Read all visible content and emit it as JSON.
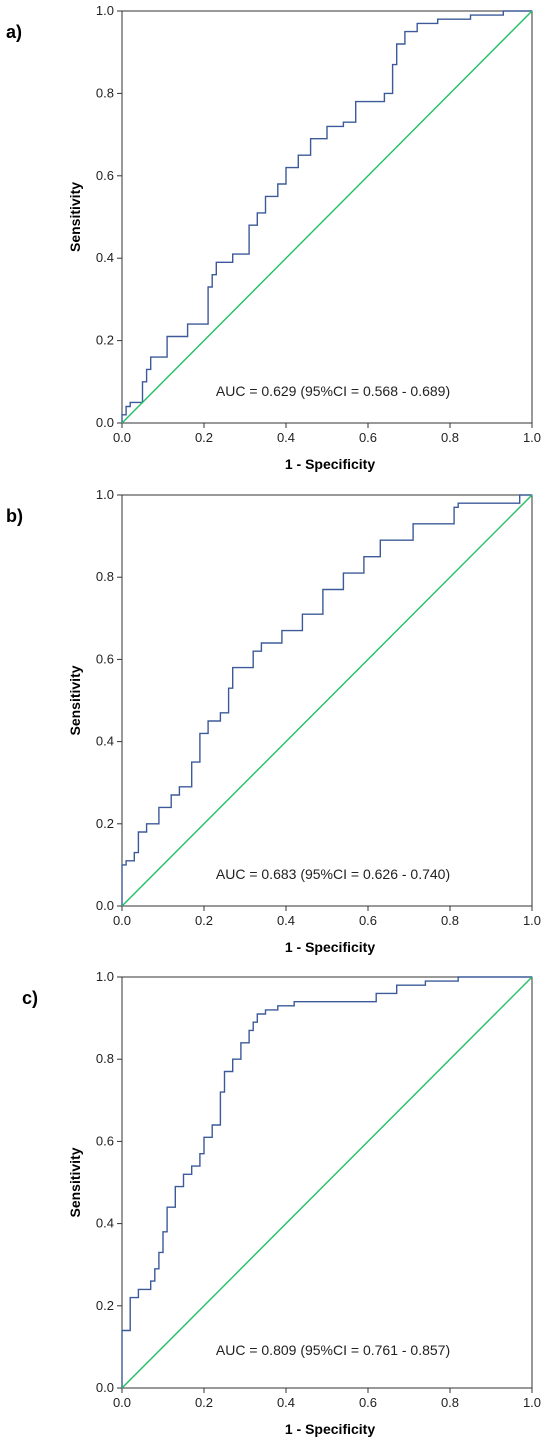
{
  "chart_data": [
    {
      "type": "line",
      "panel_label": "a)",
      "xlabel": "1 - Specificity",
      "ylabel": "Sensitivity",
      "xlim": [
        0,
        1
      ],
      "ylim": [
        0,
        1
      ],
      "xticks": [
        "0.0",
        "0.2",
        "0.4",
        "0.6",
        "0.8",
        "1.0"
      ],
      "yticks": [
        "0.0",
        "0.2",
        "0.4",
        "0.6",
        "0.8",
        "1.0"
      ],
      "annotation": "AUC = 0.629 (95%CI = 0.568 - 0.689)",
      "colors": {
        "roc": "#3c5a9a",
        "reference": "#1fc162"
      },
      "series": [
        {
          "style": "step",
          "color": "#3c5a9a",
          "x": [
            0,
            0,
            0.01,
            0.01,
            0.02,
            0.02,
            0.05,
            0.05,
            0.06,
            0.06,
            0.07,
            0.07,
            0.11,
            0.11,
            0.16,
            0.16,
            0.21,
            0.21,
            0.22,
            0.22,
            0.23,
            0.23,
            0.27,
            0.27,
            0.31,
            0.31,
            0.33,
            0.33,
            0.35,
            0.35,
            0.38,
            0.38,
            0.4,
            0.4,
            0.43,
            0.43,
            0.46,
            0.46,
            0.5,
            0.5,
            0.54,
            0.54,
            0.57,
            0.57,
            0.64,
            0.64,
            0.66,
            0.66,
            0.67,
            0.67,
            0.69,
            0.69,
            0.72,
            0.72,
            0.77,
            0.77,
            0.85,
            0.85,
            0.93,
            0.93,
            1
          ],
          "y": [
            0,
            0.02,
            0.02,
            0.04,
            0.04,
            0.05,
            0.05,
            0.1,
            0.1,
            0.13,
            0.13,
            0.16,
            0.16,
            0.21,
            0.21,
            0.24,
            0.24,
            0.33,
            0.33,
            0.36,
            0.36,
            0.39,
            0.39,
            0.41,
            0.41,
            0.48,
            0.48,
            0.51,
            0.51,
            0.55,
            0.55,
            0.58,
            0.58,
            0.62,
            0.62,
            0.65,
            0.65,
            0.69,
            0.69,
            0.72,
            0.72,
            0.73,
            0.73,
            0.78,
            0.78,
            0.8,
            0.8,
            0.87,
            0.87,
            0.92,
            0.92,
            0.95,
            0.95,
            0.97,
            0.97,
            0.98,
            0.98,
            0.99,
            0.99,
            1.0,
            1.0
          ]
        },
        {
          "style": "line",
          "color": "#1fc162",
          "x": [
            0,
            1
          ],
          "y": [
            0,
            1
          ]
        }
      ]
    },
    {
      "type": "line",
      "panel_label": "b)",
      "xlabel": "1 - Specificity",
      "ylabel": "Sensitivity",
      "xlim": [
        0,
        1
      ],
      "ylim": [
        0,
        1
      ],
      "xticks": [
        "0.0",
        "0.2",
        "0.4",
        "0.6",
        "0.8",
        "1.0"
      ],
      "yticks": [
        "0.0",
        "0.2",
        "0.4",
        "0.6",
        "0.8",
        "1.0"
      ],
      "annotation": "AUC = 0.683 (95%CI = 0.626 - 0.740)",
      "colors": {
        "roc": "#3c5a9a",
        "reference": "#1fc162"
      },
      "series": [
        {
          "style": "step",
          "color": "#3c5a9a",
          "x": [
            0,
            0,
            0.01,
            0.01,
            0.03,
            0.03,
            0.04,
            0.04,
            0.06,
            0.06,
            0.09,
            0.09,
            0.12,
            0.12,
            0.14,
            0.14,
            0.17,
            0.17,
            0.19,
            0.19,
            0.21,
            0.21,
            0.24,
            0.24,
            0.26,
            0.26,
            0.27,
            0.27,
            0.32,
            0.32,
            0.34,
            0.34,
            0.39,
            0.39,
            0.44,
            0.44,
            0.49,
            0.49,
            0.54,
            0.54,
            0.59,
            0.59,
            0.63,
            0.63,
            0.71,
            0.71,
            0.81,
            0.81,
            0.82,
            0.82,
            0.97,
            0.97,
            1
          ],
          "y": [
            0,
            0.1,
            0.1,
            0.11,
            0.11,
            0.13,
            0.13,
            0.18,
            0.18,
            0.2,
            0.2,
            0.24,
            0.24,
            0.27,
            0.27,
            0.29,
            0.29,
            0.35,
            0.35,
            0.42,
            0.42,
            0.45,
            0.45,
            0.47,
            0.47,
            0.53,
            0.53,
            0.58,
            0.58,
            0.62,
            0.62,
            0.64,
            0.64,
            0.67,
            0.67,
            0.71,
            0.71,
            0.77,
            0.77,
            0.81,
            0.81,
            0.85,
            0.85,
            0.89,
            0.89,
            0.93,
            0.93,
            0.97,
            0.97,
            0.98,
            0.98,
            1.0,
            1.0
          ]
        },
        {
          "style": "line",
          "color": "#1fc162",
          "x": [
            0,
            1
          ],
          "y": [
            0,
            1
          ]
        }
      ]
    },
    {
      "type": "line",
      "panel_label": "c)",
      "xlabel": "1 - Specificity",
      "ylabel": "Sensitivity",
      "xlim": [
        0,
        1
      ],
      "ylim": [
        0,
        1
      ],
      "xticks": [
        "0.0",
        "0.2",
        "0.4",
        "0.6",
        "0.8",
        "1.0"
      ],
      "yticks": [
        "0.0",
        "0.2",
        "0.4",
        "0.6",
        "0.8",
        "1.0"
      ],
      "annotation": "AUC = 0.809 (95%CI = 0.761 - 0.857)",
      "colors": {
        "roc": "#3c5a9a",
        "reference": "#1fc162"
      },
      "series": [
        {
          "style": "step",
          "color": "#3c5a9a",
          "x": [
            0,
            0,
            0.02,
            0.02,
            0.04,
            0.04,
            0.07,
            0.07,
            0.08,
            0.08,
            0.09,
            0.09,
            0.1,
            0.1,
            0.11,
            0.11,
            0.13,
            0.13,
            0.15,
            0.15,
            0.17,
            0.17,
            0.19,
            0.19,
            0.2,
            0.2,
            0.22,
            0.22,
            0.24,
            0.24,
            0.25,
            0.25,
            0.27,
            0.27,
            0.29,
            0.29,
            0.31,
            0.31,
            0.32,
            0.32,
            0.33,
            0.33,
            0.35,
            0.35,
            0.38,
            0.38,
            0.42,
            0.42,
            0.62,
            0.62,
            0.67,
            0.67,
            0.74,
            0.74,
            0.82,
            0.82,
            1
          ],
          "y": [
            0,
            0.14,
            0.14,
            0.22,
            0.22,
            0.24,
            0.24,
            0.26,
            0.26,
            0.29,
            0.29,
            0.33,
            0.33,
            0.38,
            0.38,
            0.44,
            0.44,
            0.49,
            0.49,
            0.52,
            0.52,
            0.54,
            0.54,
            0.57,
            0.57,
            0.61,
            0.61,
            0.64,
            0.64,
            0.72,
            0.72,
            0.77,
            0.77,
            0.8,
            0.8,
            0.84,
            0.84,
            0.87,
            0.87,
            0.89,
            0.89,
            0.91,
            0.91,
            0.92,
            0.92,
            0.93,
            0.93,
            0.94,
            0.94,
            0.96,
            0.96,
            0.98,
            0.98,
            0.99,
            0.99,
            1.0,
            1.0
          ]
        },
        {
          "style": "line",
          "color": "#1fc162",
          "x": [
            0,
            1
          ],
          "y": [
            0,
            1
          ]
        }
      ]
    }
  ]
}
